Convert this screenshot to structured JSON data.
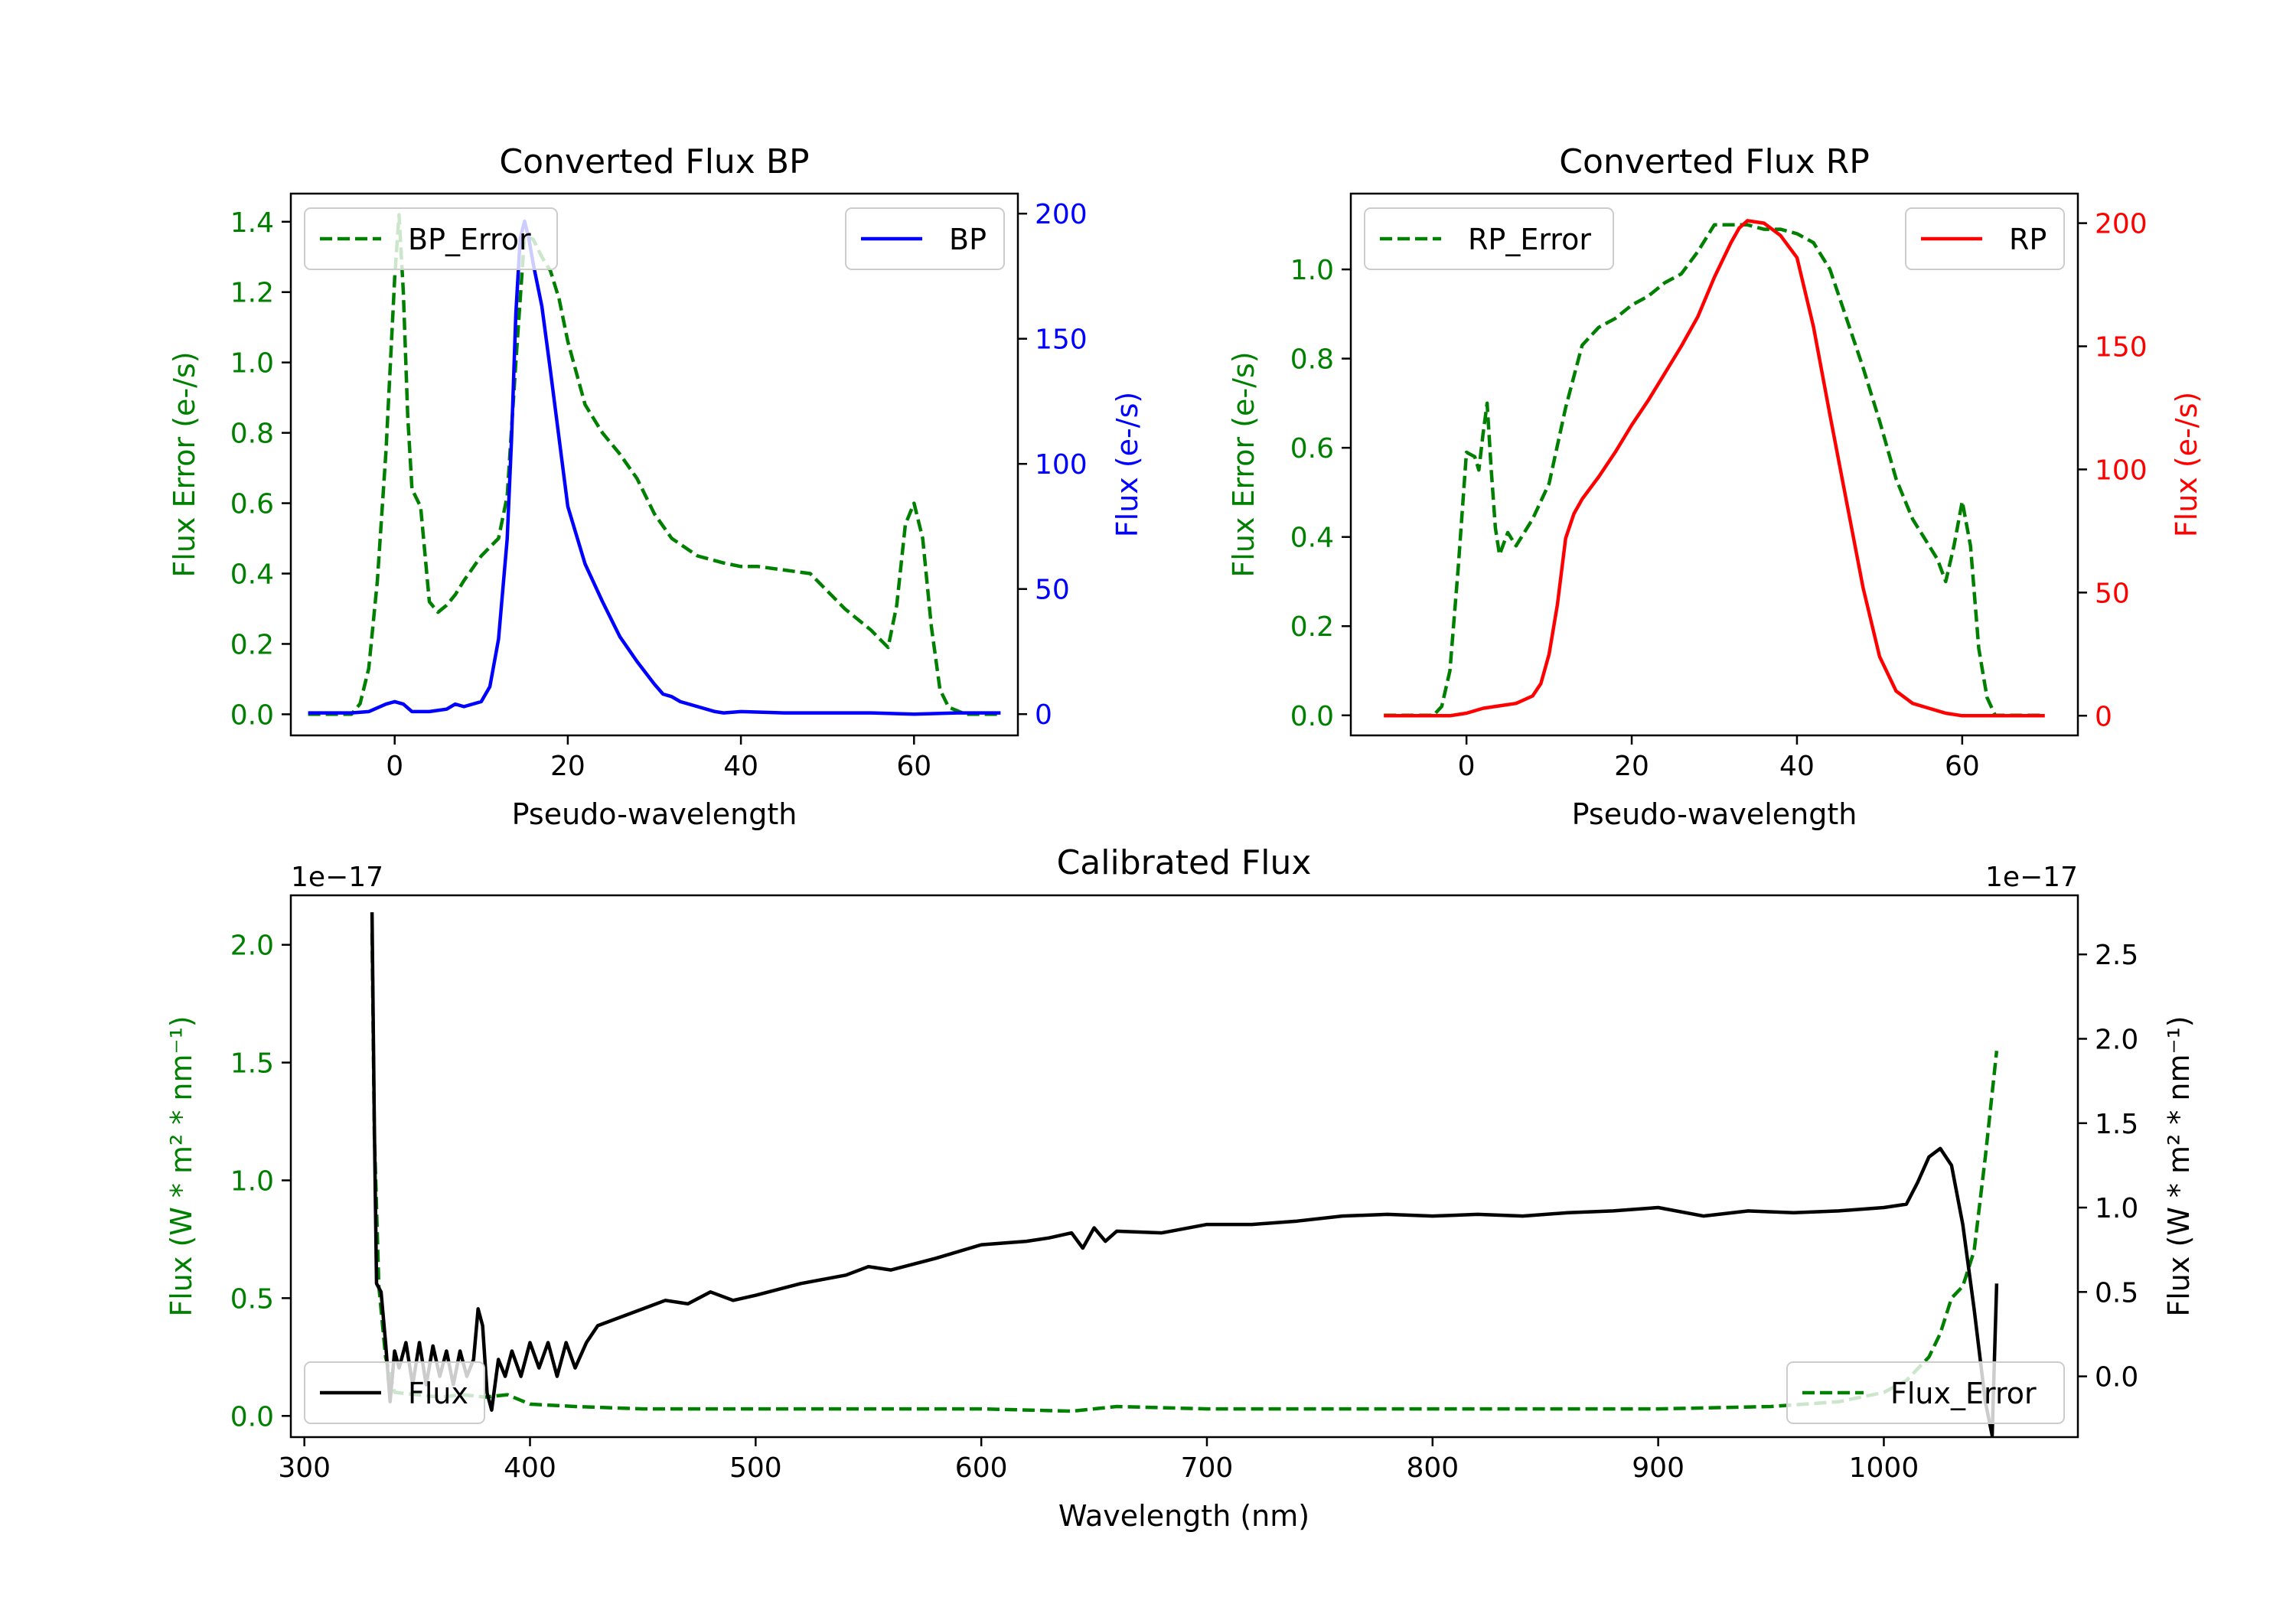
{
  "colors": {
    "error": "#008000",
    "bp": "#0000ff",
    "rp": "#ff0000",
    "calibrated": "#000000"
  },
  "chart_data": [
    {
      "id": "bp",
      "type": "line",
      "title": "Converted Flux BP",
      "xlabel": "Pseudo-wavelength",
      "ylabel_left": "Flux Error (e-/s)",
      "ylabel_right": "Flux (e-/s)",
      "xlim": [
        -12,
        72
      ],
      "ylim_left": [
        -0.06,
        1.48
      ],
      "ylim_right": [
        -8.5,
        208
      ],
      "xticks": [
        0,
        20,
        40,
        60
      ],
      "yticks_left": [
        0.0,
        0.2,
        0.4,
        0.6,
        0.8,
        1.0,
        1.2,
        1.4
      ],
      "yticks_right": [
        0,
        50,
        100,
        150,
        200
      ],
      "legend_left": "BP_Error",
      "legend_right": "BP",
      "series": [
        {
          "name": "BP_Error",
          "axis": "left",
          "style": "dashed",
          "color_key": "error",
          "x": [
            -10,
            -5,
            -4,
            -3,
            -2,
            -1,
            0,
            0.5,
            1,
            1.5,
            2,
            3,
            4,
            5,
            6,
            7,
            8,
            10,
            12,
            13,
            14,
            15,
            16,
            17,
            18,
            19,
            20,
            22,
            24,
            26,
            28,
            30,
            32,
            35,
            38,
            40,
            42,
            45,
            48,
            50,
            52,
            55,
            57,
            58,
            59,
            60,
            61,
            62,
            63,
            64,
            66,
            70
          ],
          "y": [
            0.0,
            0.0,
            0.03,
            0.13,
            0.38,
            0.75,
            1.24,
            1.42,
            1.2,
            0.85,
            0.64,
            0.59,
            0.32,
            0.29,
            0.31,
            0.34,
            0.38,
            0.45,
            0.5,
            0.62,
            1.0,
            1.36,
            1.35,
            1.3,
            1.26,
            1.18,
            1.06,
            0.88,
            0.8,
            0.74,
            0.67,
            0.57,
            0.5,
            0.45,
            0.43,
            0.42,
            0.42,
            0.41,
            0.4,
            0.35,
            0.3,
            0.24,
            0.19,
            0.31,
            0.54,
            0.6,
            0.5,
            0.25,
            0.07,
            0.02,
            0.0,
            0.0
          ]
        },
        {
          "name": "BP",
          "axis": "right",
          "style": "solid",
          "color_key": "bp",
          "x": [
            -10,
            -5,
            -3,
            -1,
            0,
            1,
            2,
            4,
            6,
            7,
            8,
            10,
            11,
            12,
            13,
            13.5,
            14,
            14.5,
            15,
            15.5,
            16,
            17,
            18,
            19,
            20,
            22,
            24,
            26,
            28,
            30,
            31,
            32,
            33,
            35,
            37,
            38,
            40,
            45,
            50,
            55,
            60,
            65,
            70
          ],
          "y": [
            0.5,
            0.5,
            1,
            4,
            5,
            4,
            1,
            1,
            2,
            4,
            3,
            5,
            11,
            30,
            70,
            110,
            160,
            190,
            197,
            190,
            180,
            163,
            137,
            110,
            83,
            60,
            45,
            31,
            21,
            12,
            8,
            7,
            5,
            3,
            1,
            0.5,
            1,
            0.5,
            0.5,
            0.5,
            0,
            0.5,
            0.5
          ]
        }
      ]
    },
    {
      "id": "rp",
      "type": "line",
      "title": "Converted Flux RP",
      "xlabel": "Pseudo-wavelength",
      "ylabel_left": "Flux Error (e-/s)",
      "ylabel_right": "Flux (e-/s)",
      "xlim": [
        -14,
        74
      ],
      "ylim_left": [
        -0.045,
        1.17
      ],
      "ylim_right": [
        -8,
        212
      ],
      "xticks": [
        0,
        20,
        40,
        60
      ],
      "yticks_left": [
        0.0,
        0.2,
        0.4,
        0.6,
        0.8,
        1.0
      ],
      "yticks_right": [
        0,
        50,
        100,
        150,
        200
      ],
      "legend_left": "RP_Error",
      "legend_right": "RP",
      "series": [
        {
          "name": "RP_Error",
          "axis": "left",
          "style": "dashed",
          "color_key": "error",
          "x": [
            -10,
            -4,
            -3,
            -2,
            -1,
            0,
            1,
            1.5,
            2,
            2.5,
            3,
            3.5,
            4,
            5,
            6,
            8,
            10,
            12,
            14,
            16,
            18,
            20,
            22,
            24,
            26,
            28,
            30,
            32,
            34,
            36,
            38,
            40,
            42,
            44,
            46,
            48,
            50,
            52,
            54,
            56,
            57,
            58,
            59,
            60,
            61,
            62,
            63,
            64,
            70
          ],
          "y": [
            0.0,
            0.0,
            0.02,
            0.1,
            0.33,
            0.59,
            0.58,
            0.55,
            0.63,
            0.7,
            0.55,
            0.42,
            0.36,
            0.41,
            0.38,
            0.44,
            0.52,
            0.69,
            0.83,
            0.87,
            0.89,
            0.92,
            0.94,
            0.97,
            0.99,
            1.04,
            1.1,
            1.1,
            1.1,
            1.09,
            1.09,
            1.08,
            1.06,
            1.0,
            0.89,
            0.78,
            0.66,
            0.53,
            0.44,
            0.38,
            0.35,
            0.3,
            0.38,
            0.48,
            0.38,
            0.15,
            0.04,
            0.0,
            0.0
          ]
        },
        {
          "name": "RP",
          "axis": "right",
          "style": "solid",
          "color_key": "rp",
          "x": [
            -10,
            -2,
            0,
            2,
            4,
            6,
            8,
            9,
            10,
            11,
            12,
            13,
            14,
            16,
            18,
            20,
            22,
            24,
            26,
            28,
            30,
            32,
            33,
            34,
            36,
            38,
            40,
            42,
            44,
            46,
            48,
            50,
            52,
            54,
            56,
            58,
            60,
            65,
            70
          ],
          "y": [
            0,
            0,
            1,
            3,
            4,
            5,
            8,
            13,
            25,
            45,
            72,
            82,
            88,
            97,
            107,
            118,
            128,
            139,
            150,
            162,
            178,
            192,
            198,
            201,
            200,
            195,
            186,
            158,
            122,
            87,
            52,
            24,
            10,
            5,
            3,
            1,
            0,
            0,
            0
          ]
        }
      ]
    },
    {
      "id": "calibrated",
      "type": "line",
      "title": "Calibrated Flux",
      "xlabel": "Wavelength (nm)",
      "ylabel_left": "Flux (W * m² * nm⁻¹)",
      "ylabel_right": "Flux (W * m² * nm⁻¹)",
      "offset_left": "1e−17",
      "offset_right": "1e−17",
      "xlim": [
        294,
        1086
      ],
      "ylim_left": [
        -0.09,
        2.21
      ],
      "ylim_right": [
        -0.36,
        2.85
      ],
      "xticks": [
        300,
        400,
        500,
        600,
        700,
        800,
        900,
        1000
      ],
      "yticks_left": [
        0.0,
        0.5,
        1.0,
        1.5,
        2.0
      ],
      "yticks_right": [
        0.0,
        0.5,
        1.0,
        1.5,
        2.0,
        2.5
      ],
      "legend_left": "Flux",
      "legend_right": "Flux_Error",
      "series": [
        {
          "name": "Flux_Error",
          "axis": "left",
          "style": "dashed",
          "color_key": "error",
          "x": [
            330,
            331,
            333,
            336,
            340,
            350,
            360,
            370,
            380,
            390,
            400,
            420,
            450,
            500,
            550,
            600,
            640,
            660,
            700,
            800,
            900,
            950,
            980,
            1000,
            1010,
            1020,
            1025,
            1030,
            1035,
            1040,
            1045,
            1050
          ],
          "y": [
            2.05,
            1.2,
            0.55,
            0.25,
            0.1,
            0.09,
            0.08,
            0.09,
            0.08,
            0.09,
            0.05,
            0.04,
            0.03,
            0.03,
            0.03,
            0.03,
            0.02,
            0.04,
            0.03,
            0.03,
            0.03,
            0.04,
            0.06,
            0.1,
            0.15,
            0.25,
            0.35,
            0.5,
            0.55,
            0.7,
            1.1,
            1.55
          ]
        },
        {
          "name": "Flux",
          "axis": "right",
          "style": "solid",
          "color_key": "calibrated",
          "x": [
            330,
            331,
            332,
            334,
            336,
            338,
            340,
            342,
            345,
            348,
            351,
            354,
            357,
            360,
            363,
            366,
            369,
            372,
            375,
            377,
            379,
            381,
            383,
            386,
            389,
            392,
            396,
            400,
            404,
            408,
            412,
            416,
            420,
            425,
            430,
            440,
            450,
            460,
            470,
            480,
            490,
            500,
            520,
            540,
            550,
            560,
            580,
            600,
            620,
            630,
            640,
            645,
            650,
            655,
            660,
            680,
            700,
            720,
            740,
            760,
            780,
            800,
            820,
            840,
            860,
            880,
            900,
            920,
            940,
            960,
            980,
            1000,
            1010,
            1015,
            1020,
            1025,
            1030,
            1035,
            1040,
            1045,
            1048,
            1050
          ],
          "y": [
            2.75,
            1.5,
            0.55,
            0.5,
            0.2,
            -0.15,
            0.15,
            0.05,
            0.2,
            -0.05,
            0.2,
            -0.05,
            0.18,
            0.0,
            0.15,
            -0.05,
            0.15,
            0.0,
            0.1,
            0.4,
            0.3,
            -0.1,
            -0.2,
            0.1,
            0.0,
            0.15,
            0.0,
            0.2,
            0.05,
            0.2,
            0.0,
            0.2,
            0.05,
            0.2,
            0.3,
            0.35,
            0.4,
            0.45,
            0.43,
            0.5,
            0.45,
            0.48,
            0.55,
            0.6,
            0.65,
            0.63,
            0.7,
            0.78,
            0.8,
            0.82,
            0.85,
            0.76,
            0.88,
            0.8,
            0.86,
            0.85,
            0.9,
            0.9,
            0.92,
            0.95,
            0.96,
            0.95,
            0.96,
            0.95,
            0.97,
            0.98,
            1.0,
            0.95,
            0.98,
            0.97,
            0.98,
            1.0,
            1.02,
            1.15,
            1.3,
            1.35,
            1.25,
            0.9,
            0.4,
            -0.15,
            -0.35,
            0.55
          ]
        }
      ]
    }
  ]
}
